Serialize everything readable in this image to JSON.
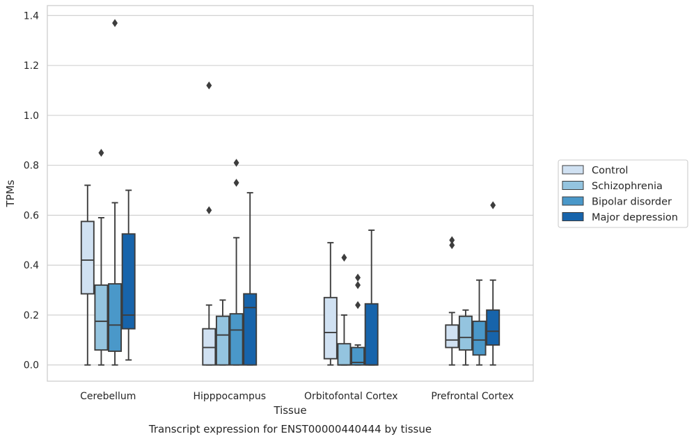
{
  "chart_data": {
    "type": "box",
    "title": "Transcript expression for ENST00000440444 by tissue",
    "xlabel": "Tissue",
    "ylabel": "TPMs",
    "ylim": [
      -0.065,
      1.44
    ],
    "yticks": [
      0.0,
      0.2,
      0.4,
      0.6,
      0.8,
      1.0,
      1.2,
      1.4
    ],
    "ytick_labels": [
      "0.0",
      "0.2",
      "0.4",
      "0.6",
      "0.8",
      "1.0",
      "1.2",
      "1.4"
    ],
    "grid": true,
    "legend_position": "right",
    "categories": [
      "Cerebellum",
      "Hipppocampus",
      "Orbitofontal Cortex",
      "Prefrontal Cortex"
    ],
    "series": [
      {
        "name": "Control",
        "color": "#d0e1f2",
        "boxes": [
          {
            "whislo": 0.0,
            "q1": 0.285,
            "med": 0.42,
            "q3": 0.575,
            "whishi": 0.72,
            "fliers": []
          },
          {
            "whislo": 0.0,
            "q1": 0.0,
            "med": 0.07,
            "q3": 0.145,
            "whishi": 0.24,
            "fliers": [
              0.62,
              1.12
            ]
          },
          {
            "whislo": 0.0,
            "q1": 0.025,
            "med": 0.13,
            "q3": 0.27,
            "whishi": 0.49,
            "fliers": []
          },
          {
            "whislo": 0.0,
            "q1": 0.07,
            "med": 0.1,
            "q3": 0.16,
            "whishi": 0.21,
            "fliers": [
              0.48,
              0.5
            ]
          }
        ]
      },
      {
        "name": "Schizophrenia",
        "color": "#94c4df",
        "boxes": [
          {
            "whislo": 0.0,
            "q1": 0.06,
            "med": 0.175,
            "q3": 0.32,
            "whishi": 0.59,
            "fliers": [
              0.85
            ]
          },
          {
            "whislo": 0.0,
            "q1": 0.0,
            "med": 0.12,
            "q3": 0.195,
            "whishi": 0.26,
            "fliers": []
          },
          {
            "whislo": 0.0,
            "q1": 0.0,
            "med": 0.0,
            "q3": 0.085,
            "whishi": 0.2,
            "fliers": [
              0.43
            ]
          },
          {
            "whislo": 0.0,
            "q1": 0.06,
            "med": 0.11,
            "q3": 0.195,
            "whishi": 0.22,
            "fliers": []
          }
        ]
      },
      {
        "name": "Bipolar disorder",
        "color": "#4a98c9",
        "boxes": [
          {
            "whislo": 0.0,
            "q1": 0.055,
            "med": 0.16,
            "q3": 0.325,
            "whishi": 0.65,
            "fliers": [
              1.37
            ]
          },
          {
            "whislo": 0.0,
            "q1": 0.0,
            "med": 0.14,
            "q3": 0.205,
            "whishi": 0.51,
            "fliers": [
              0.73,
              0.81
            ]
          },
          {
            "whislo": 0.0,
            "q1": 0.0,
            "med": 0.01,
            "q3": 0.07,
            "whishi": 0.08,
            "fliers": [
              0.24,
              0.32,
              0.35
            ]
          },
          {
            "whislo": 0.0,
            "q1": 0.04,
            "med": 0.1,
            "q3": 0.175,
            "whishi": 0.34,
            "fliers": []
          }
        ]
      },
      {
        "name": "Major depression",
        "color": "#1764ab",
        "boxes": [
          {
            "whislo": 0.02,
            "q1": 0.145,
            "med": 0.2,
            "q3": 0.525,
            "whishi": 0.7,
            "fliers": []
          },
          {
            "whislo": 0.0,
            "q1": 0.0,
            "med": 0.23,
            "q3": 0.285,
            "whishi": 0.69,
            "fliers": []
          },
          {
            "whislo": 0.0,
            "q1": 0.0,
            "med": 0.0,
            "q3": 0.245,
            "whishi": 0.54,
            "fliers": []
          },
          {
            "whislo": 0.0,
            "q1": 0.08,
            "med": 0.135,
            "q3": 0.22,
            "whishi": 0.34,
            "fliers": [
              0.64
            ]
          }
        ]
      }
    ]
  }
}
